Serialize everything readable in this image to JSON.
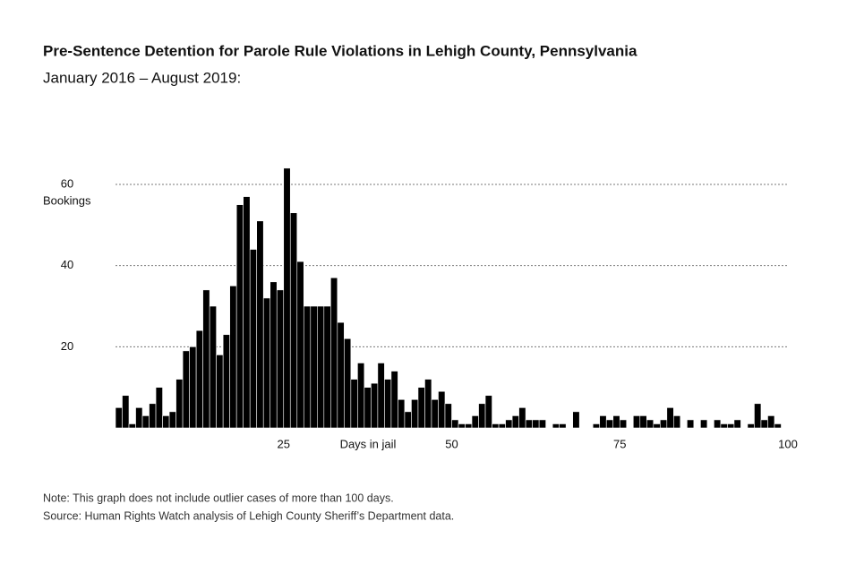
{
  "chart_data": {
    "type": "histogram",
    "title": "Pre-Sentence Detention for Parole Rule Violations in Lehigh County, Pennsylvania",
    "subtitle": "January 2016 – August 2019:",
    "x_label": "Days in jail",
    "y_label": "Bookings",
    "notes": [
      "Note: This graph does not include outlier cases of more than 100 days.",
      "Source: Human Rights Watch analysis of Lehigh County Sheriff’s Department data."
    ],
    "color": "#000000",
    "grid": true,
    "bins": [
      0,
      1,
      2,
      3,
      4,
      5,
      6,
      7,
      8,
      9,
      10,
      11,
      12,
      13,
      14,
      15,
      16,
      17,
      18,
      19,
      20,
      21,
      22,
      23,
      24,
      25,
      26,
      27,
      28,
      29,
      30,
      31,
      32,
      33,
      34,
      35,
      36,
      37,
      38,
      39,
      40,
      41,
      42,
      43,
      44,
      45,
      46,
      47,
      48,
      49,
      50,
      51,
      52,
      53,
      54,
      55,
      56,
      57,
      58,
      59,
      60,
      61,
      62,
      63,
      64,
      65,
      66,
      67,
      68,
      69,
      70,
      71,
      72,
      73,
      74,
      75,
      76,
      77,
      78,
      79,
      80,
      81,
      82,
      83,
      84,
      85,
      86,
      87,
      88,
      89,
      90,
      91,
      92,
      93,
      94,
      95,
      96,
      97,
      98,
      99,
      100
    ],
    "counts": [
      5,
      8,
      1,
      5,
      3,
      6,
      10,
      3,
      4,
      12,
      19,
      20,
      24,
      34,
      30,
      18,
      23,
      35,
      55,
      57,
      44,
      51,
      32,
      36,
      34,
      64,
      53,
      41,
      30,
      30,
      30,
      30,
      37,
      26,
      22,
      12,
      16,
      10,
      11,
      16,
      12,
      14,
      7,
      4,
      7,
      10,
      12,
      7,
      9,
      6,
      2,
      1,
      1,
      3,
      6,
      8,
      1,
      1,
      2,
      3,
      5,
      2,
      2,
      2,
      0,
      1,
      1,
      0,
      4,
      0,
      0,
      1,
      3,
      2,
      3,
      2,
      0,
      3,
      3,
      2,
      1,
      2,
      5,
      3,
      0,
      2,
      0,
      2,
      0,
      2,
      1,
      1,
      2,
      0,
      1,
      6,
      2,
      3,
      1,
      0
    ],
    "xlim": [
      0,
      100
    ],
    "xticks": [
      25,
      50,
      75,
      100
    ],
    "ylim": [
      0,
      70
    ],
    "yticks": [
      20,
      40,
      60
    ]
  }
}
